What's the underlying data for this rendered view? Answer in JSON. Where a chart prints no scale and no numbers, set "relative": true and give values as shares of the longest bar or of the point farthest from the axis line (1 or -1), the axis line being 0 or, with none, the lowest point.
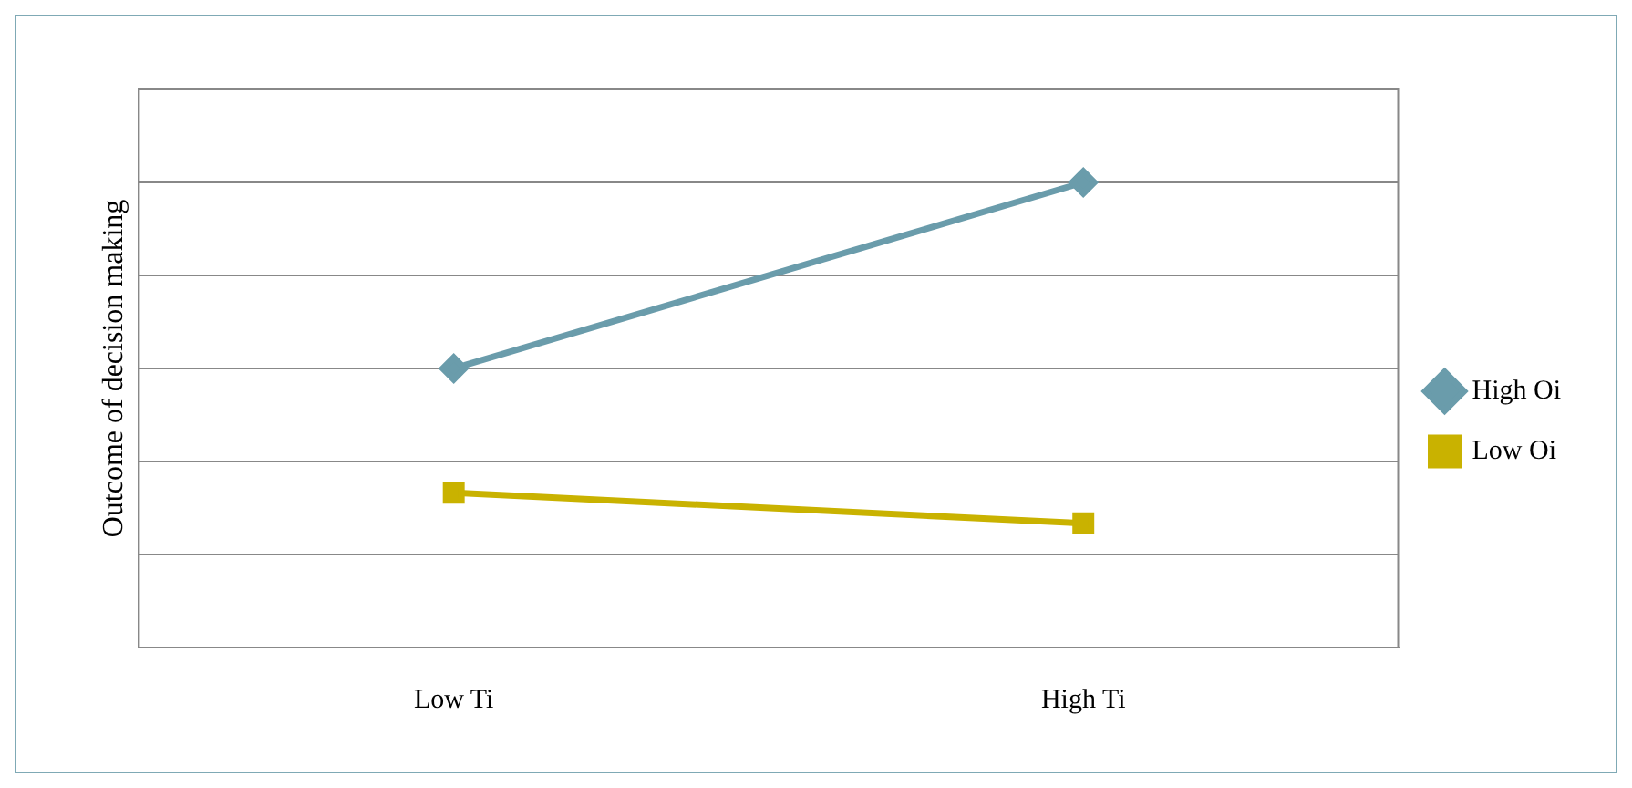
{
  "chart_data": {
    "type": "line",
    "ylabel": "Outcome of decision making",
    "categories": [
      "Low Ti",
      "High Ti"
    ],
    "relative": true,
    "grid": "y",
    "legend": "right",
    "series": [
      {
        "name": "High Oi",
        "color": "#6a9cab",
        "values": [
          0.6,
          1
        ],
        "marker": "diamond"
      },
      {
        "name": "Low Oi",
        "color": "#c9b200",
        "values": [
          0.333,
          0.267
        ],
        "marker": "square"
      }
    ]
  }
}
